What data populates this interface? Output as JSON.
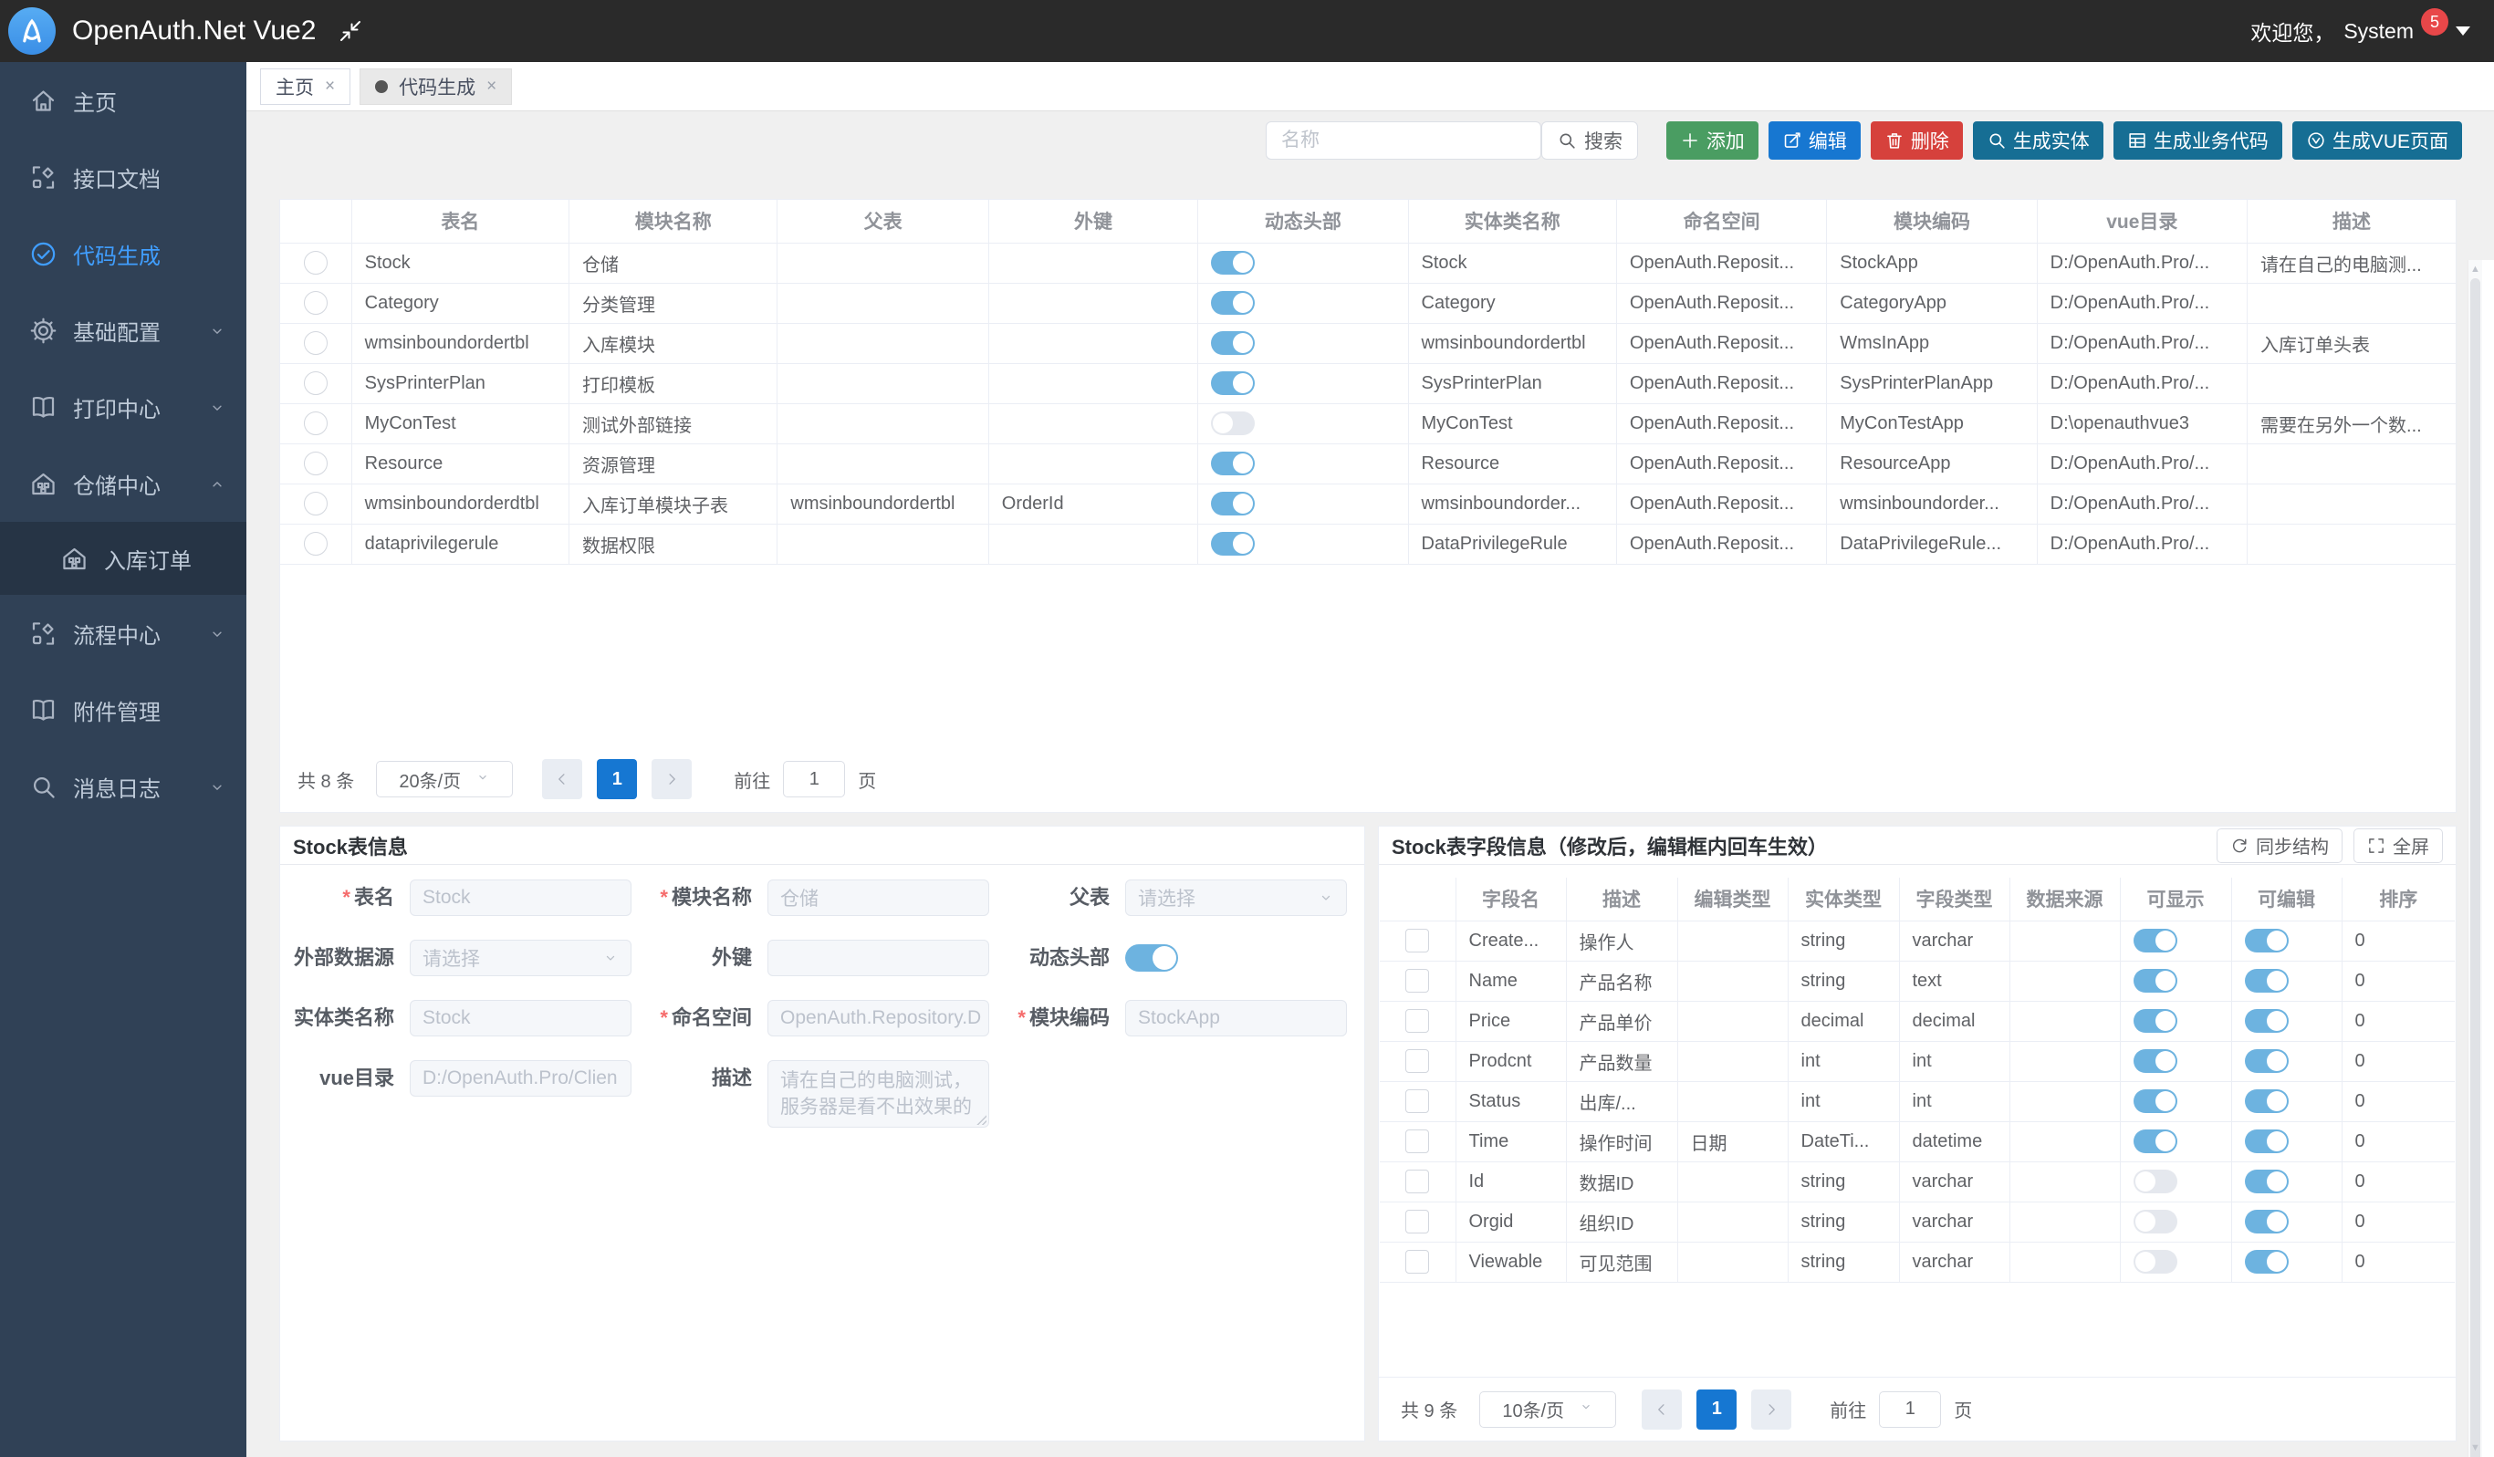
{
  "colors": {
    "accent": "#409eff",
    "pagination_active": "#1677d2",
    "success": "#4a9d62",
    "primary": "#1777d1",
    "danger": "#d6413c",
    "generate": "#166e94",
    "toggle_on": "#6db3e0",
    "badge": "#e84749",
    "header_bg": "#2a2a2a",
    "sidebar_bg": "#304156",
    "sidebar_sub_bg": "#263445"
  },
  "header": {
    "title": "OpenAuth.Net Vue2",
    "welcome": "欢迎您，",
    "username": "System",
    "badge_count": "5"
  },
  "tabs": [
    {
      "label": "主页",
      "active": false
    },
    {
      "label": "代码生成",
      "active": true
    }
  ],
  "sidebar": {
    "items": [
      {
        "key": "home",
        "label": "主页",
        "icon": "home-icon"
      },
      {
        "key": "api-docs",
        "label": "接口文档",
        "icon": "api-icon"
      },
      {
        "key": "code-gen",
        "label": "代码生成",
        "icon": "check-circle-icon",
        "active": true
      },
      {
        "key": "base-config",
        "label": "基础配置",
        "icon": "gear-icon",
        "chevron": "down"
      },
      {
        "key": "print-center",
        "label": "打印中心",
        "icon": "book-icon",
        "chevron": "down"
      },
      {
        "key": "warehouse-center",
        "label": "仓储中心",
        "icon": "warehouse-icon",
        "chevron": "up"
      },
      {
        "key": "inbound-order",
        "label": "入库订单",
        "icon": "warehouse-icon",
        "sub": true
      },
      {
        "key": "flow-center",
        "label": "流程中心",
        "icon": "api-icon",
        "chevron": "down"
      },
      {
        "key": "attachment",
        "label": "附件管理",
        "icon": "book-icon"
      },
      {
        "key": "message-log",
        "label": "消息日志",
        "icon": "search-icon",
        "chevron": "down"
      }
    ]
  },
  "toolbar": {
    "search_placeholder": "名称",
    "search_label": "搜索",
    "actions": [
      {
        "key": "add",
        "label": "添加",
        "icon": "plus-icon",
        "type": "success"
      },
      {
        "key": "edit",
        "label": "编辑",
        "icon": "edit-icon",
        "type": "primary"
      },
      {
        "key": "delete",
        "label": "删除",
        "icon": "trash-icon",
        "type": "danger"
      },
      {
        "key": "gen-entity",
        "label": "生成实体",
        "icon": "search-icon",
        "type": "generate"
      },
      {
        "key": "gen-business",
        "label": "生成业务代码",
        "icon": "grid-icon",
        "type": "generate"
      },
      {
        "key": "gen-vue",
        "label": "生成VUE页面",
        "icon": "vue-page-icon",
        "type": "generate"
      }
    ]
  },
  "main_table": {
    "columns": [
      "",
      "表名",
      "模块名称",
      "父表",
      "外键",
      "动态头部",
      "实体类名称",
      "命名空间",
      "模块编码",
      "vue目录",
      "描述"
    ],
    "rows": [
      {
        "name": "Stock",
        "module": "仓储",
        "parent": "",
        "fk": "",
        "dynamic_header": true,
        "entity": "Stock",
        "namespace": "OpenAuth.Reposit...",
        "code": "StockApp",
        "vue_dir": "D:/OpenAuth.Pro/...",
        "desc": "请在自己的电脑测..."
      },
      {
        "name": "Category",
        "module": "分类管理",
        "parent": "",
        "fk": "",
        "dynamic_header": true,
        "entity": "Category",
        "namespace": "OpenAuth.Reposit...",
        "code": "CategoryApp",
        "vue_dir": "D:/OpenAuth.Pro/...",
        "desc": ""
      },
      {
        "name": "wmsinboundordertbl",
        "module": "入库模块",
        "parent": "",
        "fk": "",
        "dynamic_header": true,
        "entity": "wmsinboundordertbl",
        "namespace": "OpenAuth.Reposit...",
        "code": "WmsInApp",
        "vue_dir": "D:/OpenAuth.Pro/...",
        "desc": "入库订单头表"
      },
      {
        "name": "SysPrinterPlan",
        "module": "打印模板",
        "parent": "",
        "fk": "",
        "dynamic_header": true,
        "entity": "SysPrinterPlan",
        "namespace": "OpenAuth.Reposit...",
        "code": "SysPrinterPlanApp",
        "vue_dir": "D:/OpenAuth.Pro/...",
        "desc": ""
      },
      {
        "name": "MyConTest",
        "module": "测试外部链接",
        "parent": "",
        "fk": "",
        "dynamic_header": false,
        "entity": "MyConTest",
        "namespace": "OpenAuth.Reposit...",
        "code": "MyConTestApp",
        "vue_dir": "D:\\openauthvue3",
        "desc": "需要在另外一个数..."
      },
      {
        "name": "Resource",
        "module": "资源管理",
        "parent": "",
        "fk": "",
        "dynamic_header": true,
        "entity": "Resource",
        "namespace": "OpenAuth.Reposit...",
        "code": "ResourceApp",
        "vue_dir": "D:/OpenAuth.Pro/...",
        "desc": ""
      },
      {
        "name": "wmsinboundorderdtbl",
        "module": "入库订单模块子表",
        "parent": "wmsinboundordertbl",
        "fk": "OrderId",
        "dynamic_header": true,
        "entity": "wmsinboundorder...",
        "namespace": "OpenAuth.Reposit...",
        "code": "wmsinboundorder...",
        "vue_dir": "D:/OpenAuth.Pro/...",
        "desc": ""
      },
      {
        "name": "dataprivilegerule",
        "module": "数据权限",
        "parent": "",
        "fk": "",
        "dynamic_header": true,
        "entity": "DataPrivilegeRule",
        "namespace": "OpenAuth.Reposit...",
        "code": "DataPrivilegeRule...",
        "vue_dir": "D:/OpenAuth.Pro/...",
        "desc": ""
      }
    ],
    "pagination": {
      "total": "共 8 条",
      "size": "20条/页",
      "page": "1",
      "goto": "前往",
      "goto_value": "1",
      "unit": "页"
    }
  },
  "detail_form": {
    "title": "Stock表信息",
    "rows": [
      [
        {
          "label": "表名",
          "required": true,
          "type": "text",
          "value": "Stock"
        },
        {
          "label": "模块名称",
          "required": true,
          "type": "text",
          "value": "仓储"
        },
        {
          "label": "父表",
          "required": false,
          "type": "select",
          "value": "请选择"
        }
      ],
      [
        {
          "label": "外部数据源",
          "required": false,
          "type": "select",
          "value": "请选择"
        },
        {
          "label": "外键",
          "required": false,
          "type": "text",
          "value": ""
        },
        {
          "label": "动态头部",
          "required": false,
          "type": "switch",
          "value": true
        }
      ],
      [
        {
          "label": "实体类名称",
          "required": false,
          "type": "text",
          "value": "Stock"
        },
        {
          "label": "命名空间",
          "required": true,
          "type": "text",
          "value": "OpenAuth.Repository.D"
        },
        {
          "label": "模块编码",
          "required": true,
          "type": "text",
          "value": "StockApp"
        }
      ],
      [
        {
          "label": "vue目录",
          "required": false,
          "type": "text",
          "value": "D:/OpenAuth.Pro/Clien"
        },
        {
          "label": "描述",
          "required": false,
          "type": "textarea",
          "value": "请在自己的电脑测试，服务器是看不出效果的"
        }
      ]
    ]
  },
  "fields_panel": {
    "title": "Stock表字段信息（修改后，编辑框内回车生效）",
    "sync_label": "同步结构",
    "fullscreen_label": "全屏",
    "columns": [
      "",
      "字段名",
      "描述",
      "编辑类型",
      "实体类型",
      "字段类型",
      "数据来源",
      "可显示",
      "可编辑",
      "排序"
    ],
    "rows": [
      {
        "name": "Create...",
        "desc": "操作人",
        "edit_type": "",
        "entity_type": "string",
        "field_type": "varchar",
        "source": "",
        "visible": true,
        "editable": true,
        "sort": "0"
      },
      {
        "name": "Name",
        "desc": "产品名称",
        "edit_type": "",
        "entity_type": "string",
        "field_type": "text",
        "source": "",
        "visible": true,
        "editable": true,
        "sort": "0"
      },
      {
        "name": "Price",
        "desc": "产品单价",
        "edit_type": "",
        "entity_type": "decimal",
        "field_type": "decimal",
        "source": "",
        "visible": true,
        "editable": true,
        "sort": "0"
      },
      {
        "name": "Prodcnt",
        "desc": "产品数量",
        "edit_type": "",
        "entity_type": "int",
        "field_type": "int",
        "source": "",
        "visible": true,
        "editable": true,
        "sort": "0"
      },
      {
        "name": "Status",
        "desc": "出库/...",
        "edit_type": "",
        "entity_type": "int",
        "field_type": "int",
        "source": "",
        "visible": true,
        "editable": true,
        "sort": "0"
      },
      {
        "name": "Time",
        "desc": "操作时间",
        "edit_type": "日期",
        "entity_type": "DateTi...",
        "field_type": "datetime",
        "source": "",
        "visible": true,
        "editable": true,
        "sort": "0"
      },
      {
        "name": "Id",
        "desc": "数据ID",
        "edit_type": "",
        "entity_type": "string",
        "field_type": "varchar",
        "source": "",
        "visible": false,
        "editable": true,
        "sort": "0"
      },
      {
        "name": "Orgid",
        "desc": "组织ID",
        "edit_type": "",
        "entity_type": "string",
        "field_type": "varchar",
        "source": "",
        "visible": false,
        "editable": true,
        "sort": "0"
      },
      {
        "name": "Viewable",
        "desc": "可见范围",
        "edit_type": "",
        "entity_type": "string",
        "field_type": "varchar",
        "source": "",
        "visible": false,
        "editable": true,
        "sort": "0"
      }
    ],
    "pagination": {
      "total": "共 9 条",
      "size": "10条/页",
      "page": "1",
      "goto": "前往",
      "goto_value": "1",
      "unit": "页"
    }
  }
}
